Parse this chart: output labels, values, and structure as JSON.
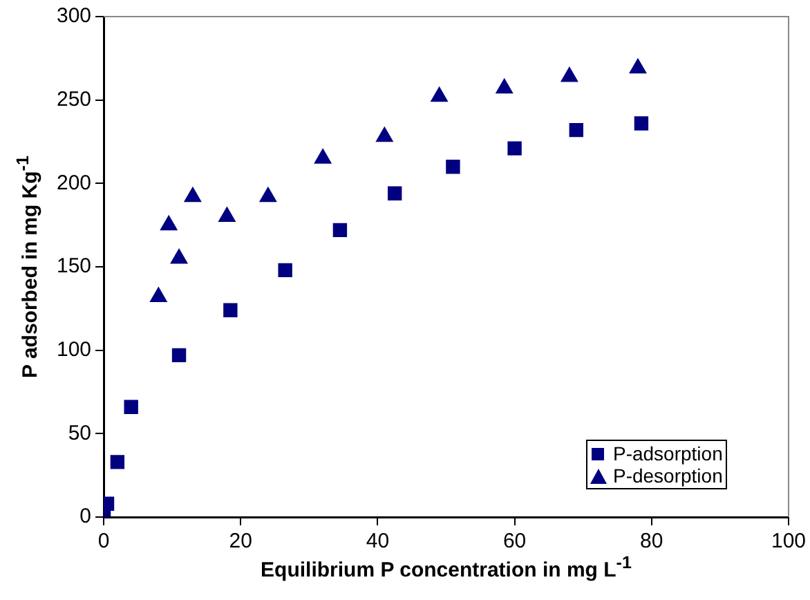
{
  "chart_data": {
    "type": "scatter",
    "xlabel": "Equilibrium P concentration in mg L$^{-1}$",
    "ylabel": "P adsorbed in mg Kg$^{-1}$",
    "xlim": [
      0,
      100
    ],
    "xticks": [
      0,
      20,
      40,
      60,
      80,
      100
    ],
    "ylim": [
      0,
      300
    ],
    "yticks": [
      0,
      50,
      100,
      150,
      200,
      250,
      300
    ],
    "grid": false,
    "legend": "bottom right",
    "series": [
      {
        "name": "P-adsorption",
        "color": "#000080",
        "marker": "square",
        "x": [
          0,
          0.5,
          2,
          4,
          11,
          18.5,
          26.5,
          34.5,
          42.5,
          51,
          60,
          69,
          78.5
        ],
        "values": [
          4,
          8,
          33,
          66,
          97,
          124,
          148,
          172,
          194,
          210,
          221,
          232,
          236
        ]
      },
      {
        "name": "P-desorption",
        "color": "#000080",
        "marker": "triangle",
        "x": [
          8,
          9.5,
          11,
          13,
          18,
          24,
          32,
          41,
          49,
          58.5,
          68,
          78
        ],
        "values": [
          132,
          175,
          155,
          192,
          180,
          192,
          215,
          228,
          252,
          257,
          264,
          269
        ]
      }
    ]
  }
}
